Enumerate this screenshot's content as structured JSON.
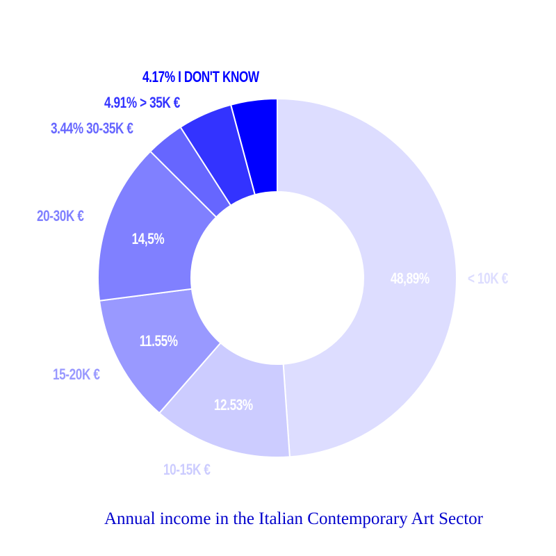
{
  "chart_data": {
    "type": "pie",
    "variant": "donut",
    "title": "Annual income in the Italian Contemporary Art Sector",
    "categories": [
      "< 10K €",
      "10-15K €",
      "15-20K €",
      "20-30K €",
      "30-35K €",
      "> 35K €",
      "I DON'T KNOW"
    ],
    "values": [
      48.89,
      12.53,
      11.55,
      14.5,
      3.44,
      4.91,
      4.17
    ],
    "value_labels": [
      "48,89%",
      "12.53%",
      "11.55%",
      "14,5%",
      "3.44%",
      "4.91%",
      "4.17%"
    ],
    "colors": [
      "#ddddff",
      "#ccccff",
      "#9999ff",
      "#8080ff",
      "#6666ff",
      "#3333ff",
      "#0000ff"
    ],
    "start_angle_deg": 0,
    "direction": "clockwise",
    "legend": "none",
    "center": [
      399,
      400
    ],
    "outer_radius": 258,
    "inner_radius": 124
  },
  "labels": {
    "dont_know": "4.17% I DON'T KNOW",
    "over_35k": "4.91% > 35K €",
    "k30_35": "3.44% 30-35K €",
    "k20_30": "20-30K €",
    "k15_20": "15-20K €",
    "k10_15": "10-15K €",
    "under_10k": "< 10K €",
    "pct_20_30": "14,5%",
    "pct_15_20": "11.55%",
    "pct_10_15": "12.53%",
    "pct_under_10": "48,89%"
  },
  "title": "Annual income in the Italian Contemporary Art Sector"
}
